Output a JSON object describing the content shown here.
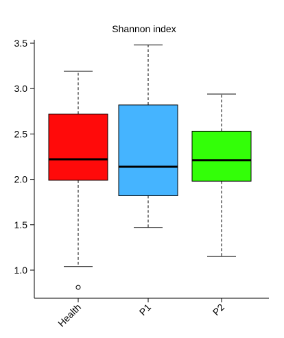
{
  "chart_data": {
    "type": "boxplot",
    "title": "Shannon index",
    "xlabel": "",
    "ylabel": "",
    "ylim": [
      0.7,
      3.6
    ],
    "yticks": [
      1.0,
      1.5,
      2.0,
      2.5,
      3.0,
      3.5
    ],
    "ytick_labels": [
      "1.0",
      "1.5",
      "2.0",
      "2.5",
      "3.0",
      "3.5"
    ],
    "categories": [
      "Health",
      "P1",
      "P2"
    ],
    "grid": false,
    "legend": "none",
    "boxes": [
      {
        "label": "Health",
        "min": 1.04,
        "q1": 1.99,
        "median": 2.22,
        "q3": 2.72,
        "max": 3.19,
        "outliers": [
          0.81
        ],
        "color": "#ff0a0a"
      },
      {
        "label": "P1",
        "min": 1.47,
        "q1": 1.82,
        "median": 2.14,
        "q3": 2.82,
        "max": 3.48,
        "outliers": [],
        "color": "#45b4ff"
      },
      {
        "label": "P2",
        "min": 1.15,
        "q1": 1.98,
        "median": 2.21,
        "q3": 2.53,
        "max": 2.94,
        "outliers": [],
        "color": "#33ff08"
      }
    ]
  }
}
